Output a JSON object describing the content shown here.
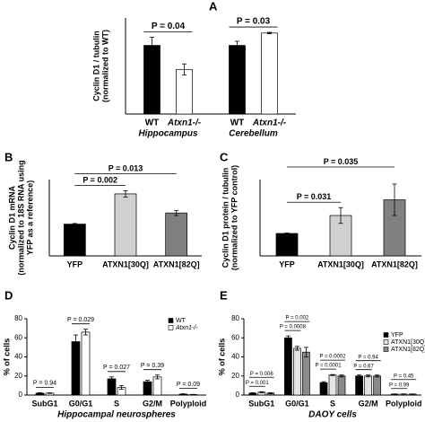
{
  "chart_data": [
    {
      "type": "bar",
      "panel": "A",
      "y_label": [
        "Cyclin D1 / tubulin",
        "(normalized to WT)"
      ],
      "categories": [
        "Hippocampus",
        "Cerebellum"
      ],
      "series_labels": "below-bars",
      "series": [
        {
          "name": "WT",
          "color": "#000000",
          "values": [
            1.0,
            1.0
          ],
          "errors": [
            0.12,
            0.06
          ]
        },
        {
          "name": "Atxn1-/-",
          "color": "#ffffff",
          "values": [
            0.65,
            1.18
          ],
          "errors": [
            0.08,
            0.01
          ]
        }
      ],
      "ylim": [
        0,
        1.4
      ],
      "annotations": [
        "P = 0.04",
        "P = 0.03"
      ]
    },
    {
      "type": "bar",
      "panel": "B",
      "y_label": [
        "Cyclin D1 mRNA",
        "(normalized to 18S RNA using",
        "YFP as a reference)"
      ],
      "categories": [
        "YFP",
        "ATXN1[30Q]",
        "ATXN1[82Q]"
      ],
      "values": [
        1.0,
        1.95,
        1.35
      ],
      "errors": [
        0.02,
        0.1,
        0.08
      ],
      "colors": [
        "#000000",
        "#d0d0d0",
        "#808080"
      ],
      "ylim": [
        0,
        2.4
      ],
      "annotations": [
        "P = 0.002",
        "P = 0.013"
      ]
    },
    {
      "type": "bar",
      "panel": "C",
      "y_label": [
        "Cyclin D1 protein / tubulin",
        "(normalized to YFP control)"
      ],
      "categories": [
        "YFP",
        "ATXN1[30Q]",
        "ATXN1[82Q]"
      ],
      "values": [
        1.0,
        1.8,
        2.5
      ],
      "errors": [
        0.02,
        0.35,
        0.7
      ],
      "colors": [
        "#000000",
        "#d0d0d0",
        "#808080"
      ],
      "ylim": [
        0,
        3.4
      ],
      "annotations": [
        "P = 0.031",
        "P = 0.035"
      ]
    },
    {
      "type": "bar",
      "panel": "D",
      "y_label": [
        "% of cells"
      ],
      "x_label": "Hippocampal neurospheres",
      "categories": [
        "SubG1",
        "G0/G1",
        "S",
        "G2/M",
        "Polyploid"
      ],
      "legend": "top-right",
      "series": [
        {
          "name": "WT",
          "color": "#000000",
          "values": [
            2,
            56,
            17,
            14,
            1
          ],
          "errors": [
            0.5,
            7,
            2,
            1.5,
            0.3
          ]
        },
        {
          "name": "Atxn1-/-",
          "color": "#ffffff",
          "values": [
            2,
            66,
            8,
            19,
            0.5
          ],
          "errors": [
            0.3,
            3,
            2,
            2,
            0.2
          ]
        }
      ],
      "ylim": [
        0,
        80
      ],
      "yticks": [
        0,
        20,
        40,
        60,
        80
      ],
      "annotations": [
        "P = 0.94",
        "P = 0.029",
        "P = 0.027",
        "P = 0.39",
        "P = 0.09"
      ]
    },
    {
      "type": "bar",
      "panel": "E",
      "y_label": [
        "% of cells"
      ],
      "x_label": "DAOY cells",
      "categories": [
        "SubG1",
        "G0/G1",
        "S",
        "G2/M",
        "Polyploid"
      ],
      "legend": "top-right",
      "series": [
        {
          "name": "YFP",
          "color": "#000000",
          "values": [
            2,
            60,
            13,
            20,
            1
          ],
          "errors": [
            0.5,
            2,
            1,
            1,
            0.2
          ]
        },
        {
          "name": "ATXN1[30Q]",
          "color": "#e4e4e4",
          "values": [
            3,
            49,
            21,
            20,
            1
          ],
          "errors": [
            0.5,
            2,
            0.5,
            1,
            0.2
          ]
        },
        {
          "name": "ATXN1[82Q]",
          "color": "#8a8a8a",
          "values": [
            2,
            45,
            20,
            20,
            1
          ],
          "errors": [
            0.5,
            5,
            1,
            1,
            0.2
          ]
        }
      ],
      "ylim": [
        0,
        80
      ],
      "yticks": [
        0,
        20,
        40,
        60,
        80
      ],
      "annotations": [
        "P = 0.006",
        "P = 0.001",
        "P = 0.002",
        "P = 0.0008",
        "P = 0.0002",
        "P = 0.0001",
        "P = 0.94",
        "P = 0.67",
        "P = 0.45",
        "P = 0.99"
      ]
    }
  ]
}
